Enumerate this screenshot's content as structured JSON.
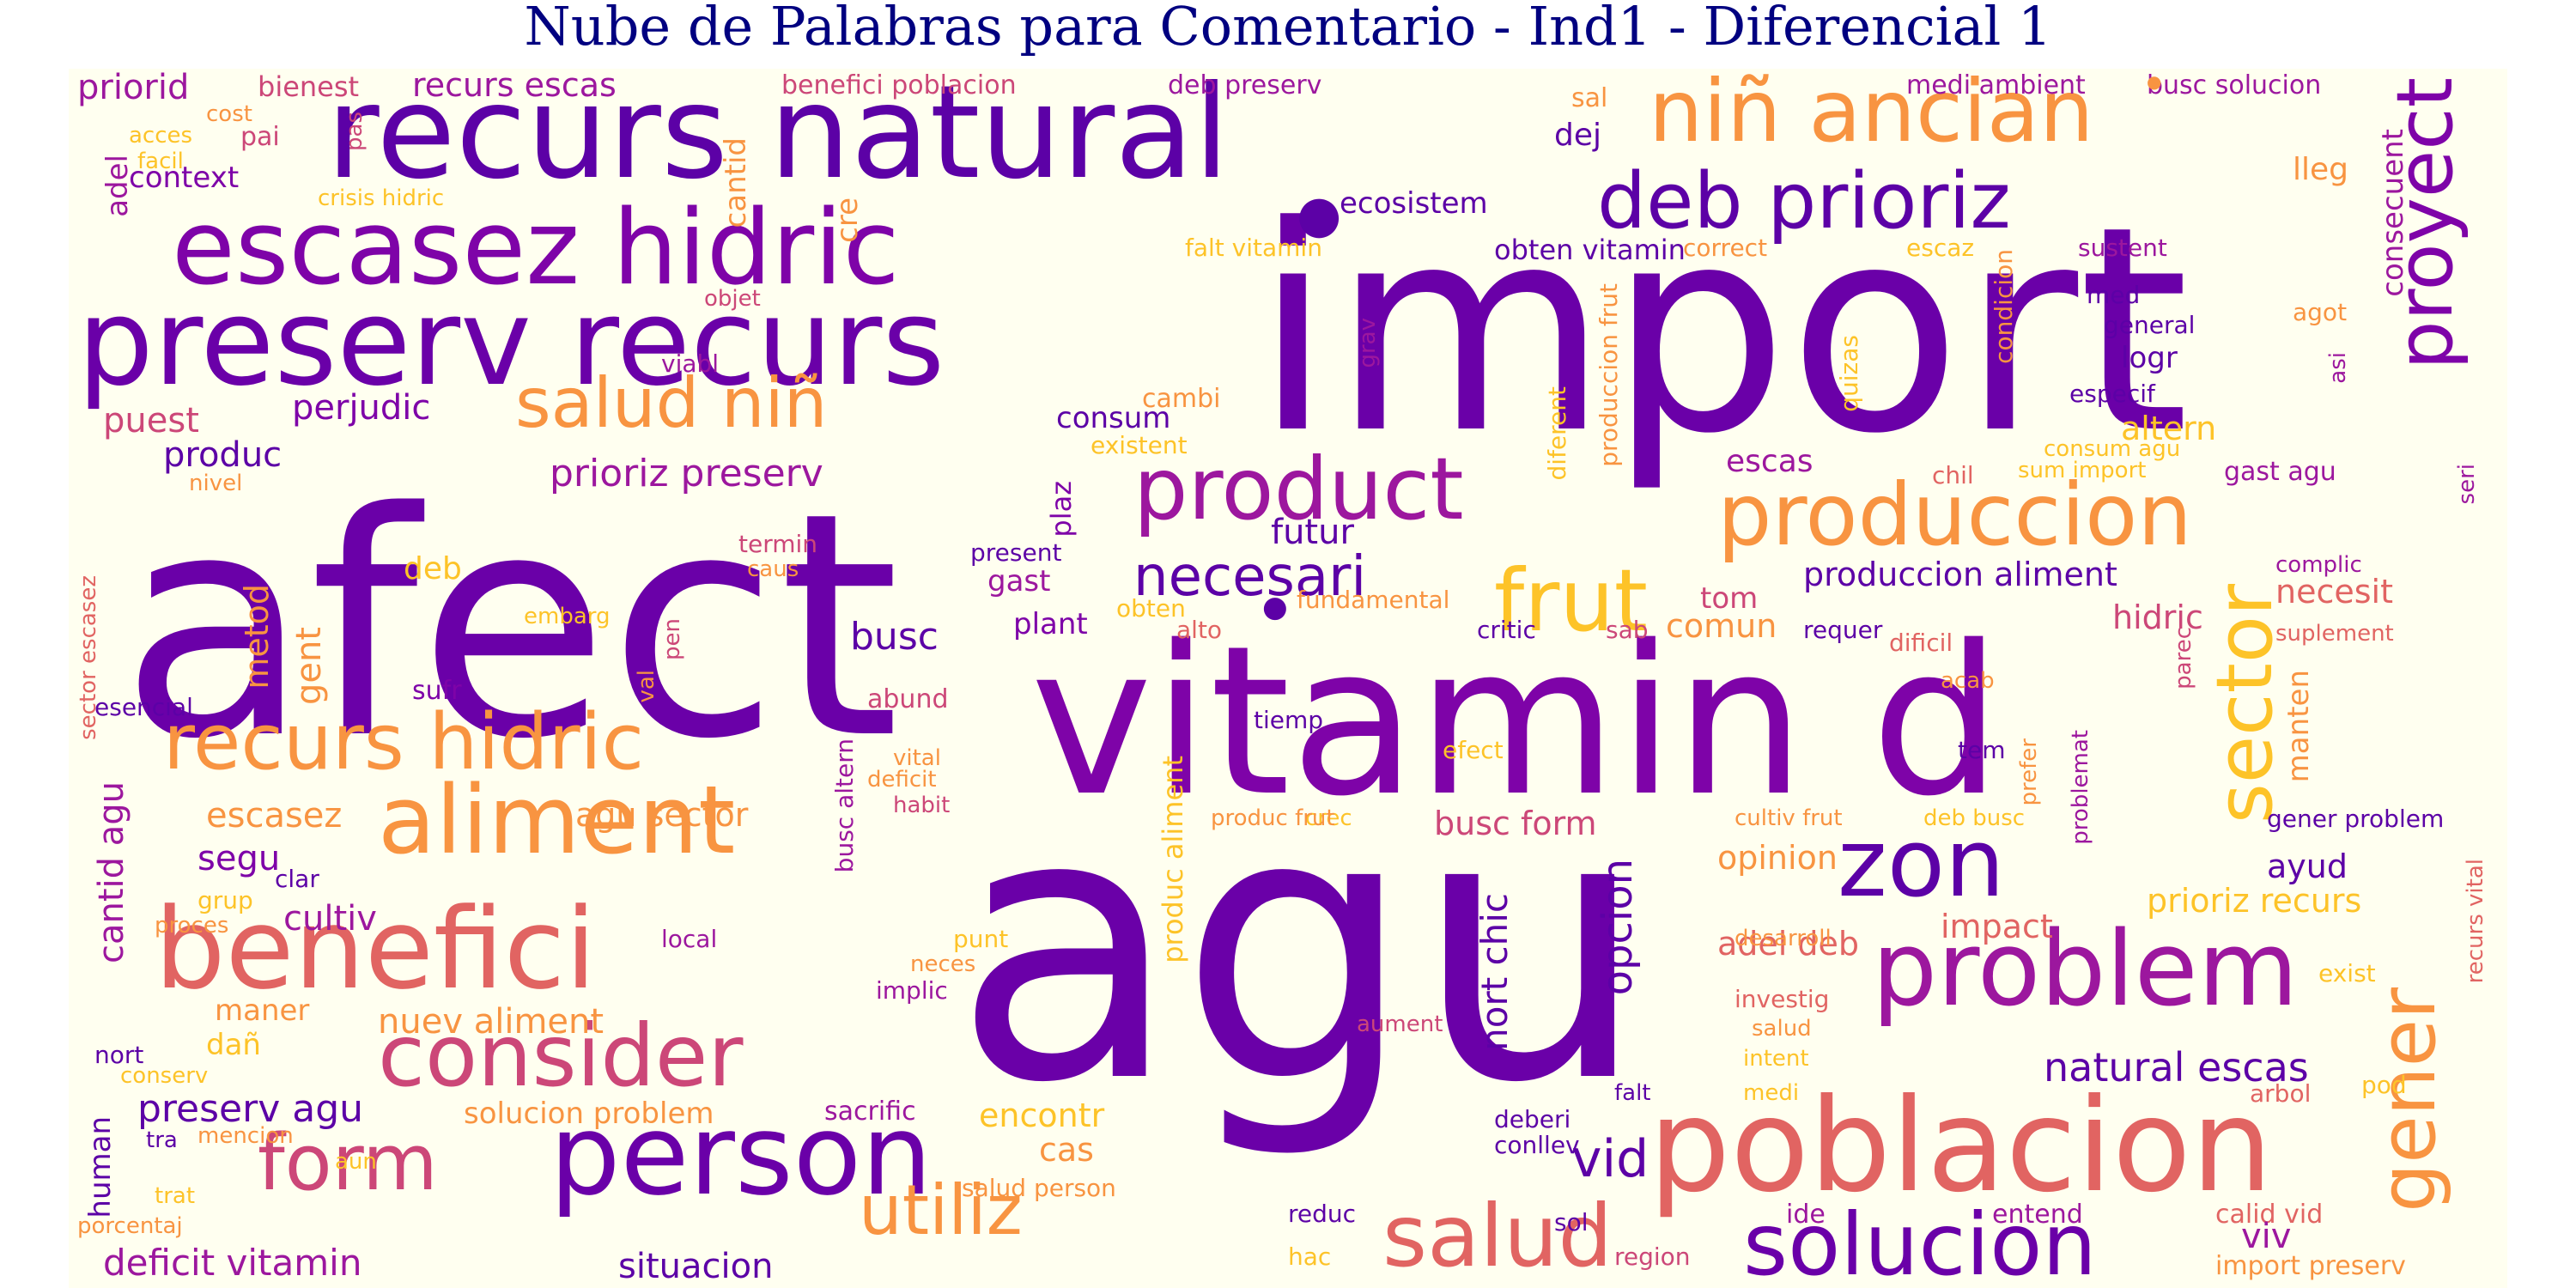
{
  "title": "Nube de Palabras para Comentario - Ind1 - Diferencial 1",
  "colors": {
    "background": "#fffff0",
    "title": "#000080",
    "palette": [
      "#0d0887",
      "#5c01a6",
      "#7e03a8",
      "#9c179e",
      "#cc4778",
      "#e16462",
      "#f89441",
      "#fdc328",
      "#f0f921"
    ]
  },
  "words": [
    "agu",
    "afect",
    "import",
    "vitamin d",
    "recurs natural",
    "poblacion",
    "person",
    "preserv recurs",
    "escasez hidric",
    "problem",
    "benefici",
    "consider",
    "niñ ancian",
    "deb prioriz",
    "proyect",
    "produccion",
    "aliment",
    "recurs hidric",
    "product",
    "salud niñ",
    "zon",
    "sector",
    "gener",
    "solucion",
    "salud",
    "frut",
    "form",
    "necesari",
    "busc",
    "ecosistem",
    "obten vitamin",
    "prioriz preserv",
    "perjudic",
    "consum",
    "cambi",
    "futur",
    "produccion aliment",
    "natural escas",
    "opcion",
    "nort chic",
    "vid",
    "utiliz",
    "deficit vitamin",
    "situacion",
    "preserv agu",
    "solucion problem",
    "nuev aliment",
    "cultiv",
    "escasez",
    "segu",
    "agu sector",
    "cantid agu",
    "metod",
    "gent",
    "deb",
    "puest",
    "produc",
    "prioriz recurs",
    "ayud",
    "impact",
    "adel deb",
    "opinion",
    "busc form",
    "consecuent",
    "manten",
    "necesit",
    "hidric",
    "altern",
    "comun",
    "tom",
    "escas",
    "priorid",
    "bienest",
    "recurs escas",
    "benefici poblacion",
    "deb preserv",
    "medi ambient",
    "busc solucion",
    "sal",
    "dej",
    "lleg",
    "context",
    "adel",
    "cost",
    "acces",
    "pai",
    "facil",
    "pas",
    "crisis hidric",
    "cantid",
    "cre",
    "objet",
    "viabl",
    "falt vitamin",
    "correct",
    "escaz",
    "sustent",
    "med",
    "general",
    "agot",
    "logr",
    "especif",
    "condicion",
    "grav",
    "quizas",
    "existent",
    "consum agu",
    "sum import",
    "chil",
    "gast agu",
    "nivel",
    "plaz",
    "diferent",
    "produccion frut",
    "asi",
    "seri",
    "termin",
    "caus",
    "present",
    "embarg",
    "val",
    "pen",
    "obten",
    "fundamental",
    "plant",
    "gast",
    "alto",
    "critic",
    "sab",
    "requer",
    "dificil",
    "complic",
    "suplement",
    "parec",
    "sector escasez",
    "esencial",
    "sufr",
    "abund",
    "tiemp",
    "busc altern",
    "vital",
    "deficit",
    "habit",
    "produc aliment",
    "crec",
    "efect",
    "prefer",
    "tem",
    "acab",
    "problemat",
    "produc frut",
    "cultiv frut",
    "deb busc",
    "gener problem",
    "clar",
    "grup",
    "proces",
    "local",
    "punt",
    "neces",
    "implic",
    "desarroll",
    "exist",
    "recurs vital",
    "maner",
    "dañ",
    "nort",
    "conserv",
    "investig",
    "salud",
    "intent",
    "aument",
    "falt",
    "medi",
    "arbol",
    "pod",
    "human",
    "tra",
    "mencion",
    "aun",
    "sacrific",
    "encontr",
    "cas",
    "deberi",
    "conllev",
    "trat",
    "porcentaj",
    "salud person",
    "reduc",
    "sol",
    "hac",
    "region",
    "ide",
    "entend",
    "calid vid",
    "viv",
    "import preserv"
  ]
}
